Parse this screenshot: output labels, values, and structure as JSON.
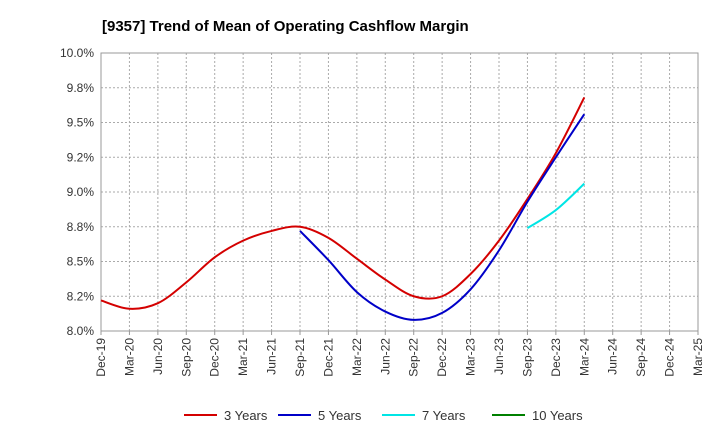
{
  "chart_data": {
    "type": "line",
    "title": "[9357]  Trend of Mean of Operating Cashflow Margin",
    "xlabel": "",
    "ylabel": "",
    "ylim": [
      8.0,
      10.0
    ],
    "y_ticks": [
      "10.0%",
      "9.8%",
      "9.5%",
      "9.2%",
      "9.0%",
      "8.8%",
      "8.5%",
      "8.2%",
      "8.0%"
    ],
    "y_tick_values": [
      10.0,
      9.75,
      9.5,
      9.25,
      9.0,
      8.75,
      8.5,
      8.25,
      8.0
    ],
    "categories": [
      "Dec-19",
      "Mar-20",
      "Jun-20",
      "Sep-20",
      "Dec-20",
      "Mar-21",
      "Jun-21",
      "Sep-21",
      "Dec-21",
      "Mar-22",
      "Jun-22",
      "Sep-22",
      "Dec-22",
      "Mar-23",
      "Jun-23",
      "Sep-23",
      "Dec-23",
      "Mar-24",
      "Jun-24",
      "Sep-24",
      "Dec-24",
      "Mar-25"
    ],
    "grid": true,
    "legend_position": "bottom",
    "series": [
      {
        "name": "3 Years",
        "color": "#d40000",
        "values": [
          8.22,
          8.16,
          8.2,
          8.35,
          8.53,
          8.65,
          8.72,
          8.75,
          8.67,
          8.52,
          8.37,
          8.25,
          8.25,
          8.41,
          8.65,
          8.95,
          9.28,
          9.68,
          null,
          null,
          null,
          null
        ]
      },
      {
        "name": "5 Years",
        "color": "#0000c8",
        "values": [
          null,
          null,
          null,
          null,
          null,
          null,
          null,
          8.72,
          8.51,
          8.28,
          8.14,
          8.08,
          8.13,
          8.3,
          8.58,
          8.93,
          9.25,
          9.56,
          null,
          null,
          null,
          null
        ]
      },
      {
        "name": "7 Years",
        "color": "#00e5e5",
        "values": [
          null,
          null,
          null,
          null,
          null,
          null,
          null,
          null,
          null,
          null,
          null,
          null,
          null,
          null,
          null,
          8.74,
          8.87,
          9.06,
          null,
          null,
          null,
          null
        ]
      },
      {
        "name": "10 Years",
        "color": "#008000",
        "values": [
          null,
          null,
          null,
          null,
          null,
          null,
          null,
          null,
          null,
          null,
          null,
          null,
          null,
          null,
          null,
          null,
          null,
          null,
          null,
          null,
          null,
          null
        ]
      }
    ]
  }
}
